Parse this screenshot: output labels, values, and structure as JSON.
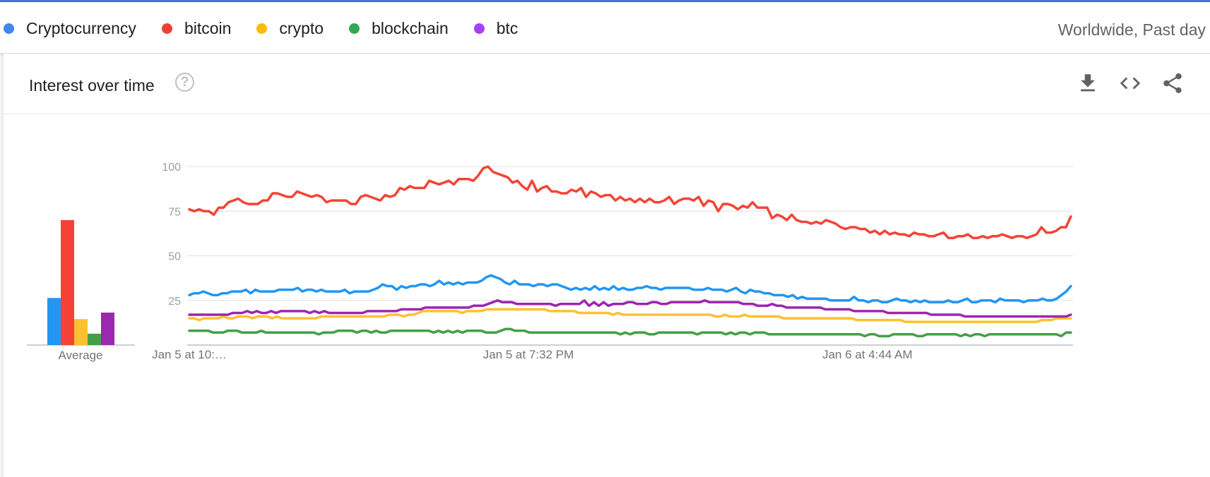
{
  "legend": {
    "items": [
      {
        "label": "Cryptocurrency",
        "color": "#4285f4"
      },
      {
        "label": "bitcoin",
        "color": "#ea4335"
      },
      {
        "label": "crypto",
        "color": "#fbbc04"
      },
      {
        "label": "blockchain",
        "color": "#34a853"
      },
      {
        "label": "btc",
        "color": "#a142f4"
      }
    ],
    "region": "Worldwide, Past day"
  },
  "card": {
    "title": "Interest over time",
    "help_icon": "help-circle-icon",
    "tools": [
      "download-icon",
      "embed-code-icon",
      "share-icon"
    ]
  },
  "chart_data": [
    {
      "type": "bar",
      "xlabel": "Average",
      "categories": [
        "Cryptocurrency",
        "bitcoin",
        "crypto",
        "blockchain",
        "btc"
      ],
      "values": [
        29,
        77,
        16,
        7,
        20
      ],
      "colors": [
        "#2196f3",
        "#f44336",
        "#fdc02f",
        "#43a047",
        "#9c27b0"
      ],
      "ylim": [
        0,
        100
      ]
    },
    {
      "type": "line",
      "ylim": [
        0,
        100
      ],
      "y_ticks": [
        25,
        50,
        75,
        100
      ],
      "x_tick_labels": [
        "Jan 5 at 10:…",
        "Jan 5 at 7:32 PM",
        "Jan 6 at 4:44 AM"
      ],
      "grid": true,
      "series": [
        {
          "name": "Cryptocurrency",
          "color": "#2196f3",
          "values": [
            28,
            29,
            29,
            30,
            29,
            28,
            28,
            29,
            29,
            30,
            30,
            30,
            31,
            29,
            31,
            30,
            30,
            30,
            30,
            31,
            31,
            31,
            31,
            32,
            30,
            31,
            31,
            30,
            31,
            30,
            30,
            30,
            30,
            31,
            29,
            30,
            30,
            30,
            30,
            31,
            32,
            34,
            33,
            33,
            31,
            33,
            32,
            33,
            33,
            34,
            34,
            33,
            34,
            36,
            34,
            35,
            34,
            35,
            34,
            35,
            35,
            35,
            36,
            38,
            39,
            38,
            37,
            35,
            34,
            36,
            34,
            34,
            34,
            33,
            34,
            34,
            33,
            34,
            34,
            33,
            32,
            31,
            32,
            31,
            32,
            31,
            33,
            31,
            32,
            31,
            33,
            31,
            32,
            31,
            31,
            32,
            32,
            33,
            32,
            32,
            31,
            32,
            32,
            32,
            32,
            32,
            32,
            31,
            31,
            31,
            32,
            31,
            31,
            31,
            30,
            31,
            32,
            30,
            29,
            31,
            30,
            30,
            29,
            29,
            28,
            28,
            28,
            27,
            28,
            26,
            27,
            26,
            26,
            26,
            26,
            26,
            25,
            25,
            25,
            25,
            25,
            27,
            25,
            25,
            24,
            25,
            25,
            24,
            24,
            25,
            26,
            25,
            25,
            24,
            25,
            24,
            25,
            24,
            24,
            24,
            24,
            25,
            24,
            24,
            25,
            26,
            24,
            24,
            25,
            25,
            25,
            24,
            26,
            25,
            25,
            25,
            25,
            24,
            25,
            25,
            25,
            26,
            25,
            25,
            26,
            28,
            30,
            33
          ]
        },
        {
          "name": "bitcoin",
          "color": "#f44336",
          "values": [
            76,
            75,
            76,
            75,
            75,
            73,
            77,
            77,
            80,
            81,
            82,
            80,
            79,
            79,
            79,
            81,
            81,
            85,
            85,
            84,
            83,
            83,
            86,
            85,
            84,
            83,
            84,
            83,
            80,
            81,
            81,
            81,
            81,
            79,
            79,
            83,
            84,
            83,
            82,
            81,
            84,
            83,
            84,
            88,
            87,
            89,
            88,
            88,
            88,
            92,
            91,
            90,
            91,
            92,
            90,
            93,
            93,
            93,
            92,
            95,
            99,
            100,
            97,
            96,
            95,
            94,
            91,
            92,
            89,
            87,
            92,
            86,
            88,
            89,
            86,
            86,
            85,
            85,
            87,
            86,
            88,
            83,
            86,
            85,
            83,
            84,
            84,
            81,
            83,
            81,
            82,
            80,
            82,
            80,
            82,
            80,
            80,
            81,
            83,
            79,
            81,
            82,
            82,
            81,
            83,
            78,
            81,
            80,
            75,
            79,
            79,
            78,
            76,
            78,
            77,
            80,
            77,
            77,
            77,
            71,
            73,
            72,
            70,
            73,
            70,
            69,
            69,
            68,
            69,
            68,
            70,
            69,
            68,
            66,
            65,
            66,
            66,
            65,
            65,
            63,
            64,
            62,
            64,
            62,
            63,
            62,
            62,
            61,
            63,
            62,
            62,
            61,
            61,
            62,
            63,
            60,
            60,
            61,
            61,
            62,
            60,
            60,
            61,
            60,
            61,
            61,
            62,
            61,
            60,
            61,
            61,
            60,
            61,
            62,
            66,
            63,
            63,
            64,
            66,
            66,
            72
          ]
        },
        {
          "name": "crypto",
          "color": "#fdc02f",
          "values": [
            15,
            15,
            14,
            15,
            15,
            15,
            15,
            16,
            15,
            15,
            16,
            16,
            16,
            15,
            16,
            16,
            16,
            15,
            16,
            15,
            15,
            15,
            15,
            15,
            15,
            15,
            15,
            16,
            16,
            16,
            16,
            16,
            16,
            16,
            16,
            16,
            16,
            16,
            16,
            16,
            16,
            17,
            17,
            17,
            16,
            17,
            17,
            18,
            19,
            19,
            19,
            19,
            19,
            19,
            19,
            19,
            18,
            19,
            19,
            19,
            19,
            20,
            20,
            20,
            20,
            20,
            20,
            20,
            20,
            20,
            20,
            20,
            20,
            20,
            19,
            19,
            19,
            19,
            19,
            19,
            18,
            18,
            18,
            18,
            18,
            18,
            18,
            17,
            18,
            17,
            17,
            17,
            17,
            17,
            17,
            17,
            17,
            17,
            17,
            17,
            17,
            17,
            17,
            17,
            17,
            17,
            17,
            17,
            16,
            16,
            17,
            16,
            16,
            16,
            17,
            16,
            16,
            16,
            16,
            16,
            16,
            16,
            15,
            15,
            15,
            15,
            15,
            15,
            15,
            15,
            15,
            15,
            15,
            15,
            15,
            15,
            15,
            14,
            14,
            14,
            14,
            14,
            14,
            14,
            14,
            14,
            14,
            13,
            13,
            13,
            13,
            13,
            13,
            13,
            13,
            13,
            13,
            13,
            13,
            13,
            13,
            13,
            13,
            13,
            13,
            13,
            13,
            13,
            13,
            13,
            13,
            13,
            13,
            13,
            13,
            14,
            14,
            14,
            15,
            15,
            15,
            15
          ]
        },
        {
          "name": "blockchain",
          "color": "#43a047",
          "values": [
            8,
            8,
            8,
            8,
            8,
            7,
            7,
            7,
            8,
            8,
            8,
            7,
            7,
            7,
            7,
            8,
            7,
            7,
            7,
            7,
            7,
            7,
            7,
            7,
            7,
            7,
            7,
            6,
            7,
            7,
            7,
            8,
            8,
            8,
            8,
            7,
            8,
            8,
            7,
            8,
            7,
            7,
            8,
            8,
            8,
            8,
            8,
            8,
            8,
            8,
            8,
            7,
            8,
            7,
            8,
            7,
            8,
            7,
            8,
            8,
            8,
            8,
            7,
            7,
            7,
            8,
            9,
            9,
            8,
            8,
            8,
            7,
            7,
            7,
            7,
            7,
            7,
            7,
            7,
            7,
            7,
            7,
            7,
            7,
            7,
            7,
            7,
            7,
            7,
            7,
            6,
            7,
            6,
            7,
            7,
            7,
            6,
            6,
            7,
            7,
            7,
            7,
            7,
            7,
            7,
            7,
            6,
            7,
            7,
            7,
            7,
            7,
            6,
            7,
            6,
            7,
            7,
            6,
            7,
            7,
            7,
            6,
            6,
            6,
            6,
            6,
            6,
            6,
            6,
            6,
            6,
            6,
            6,
            6,
            6,
            6,
            6,
            6,
            6,
            6,
            6,
            5,
            6,
            6,
            5,
            5,
            5,
            6,
            6,
            6,
            6,
            6,
            5,
            5,
            6,
            6,
            6,
            6,
            6,
            6,
            6,
            5,
            6,
            5,
            6,
            6,
            5,
            6,
            6,
            6,
            6,
            6,
            6,
            6,
            6,
            6,
            6,
            6,
            6,
            6,
            6,
            6,
            5,
            7,
            7
          ]
        },
        {
          "name": "btc",
          "color": "#9c27b0",
          "values": [
            17,
            17,
            17,
            17,
            17,
            17,
            17,
            17,
            17,
            18,
            18,
            18,
            19,
            18,
            19,
            18,
            18,
            19,
            18,
            19,
            19,
            19,
            19,
            19,
            19,
            18,
            19,
            18,
            19,
            18,
            18,
            18,
            18,
            18,
            18,
            18,
            18,
            19,
            19,
            19,
            19,
            19,
            19,
            19,
            20,
            20,
            20,
            20,
            20,
            21,
            21,
            21,
            21,
            21,
            21,
            21,
            21,
            21,
            21,
            22,
            22,
            22,
            23,
            24,
            25,
            24,
            24,
            24,
            23,
            23,
            23,
            23,
            23,
            23,
            23,
            23,
            22,
            23,
            23,
            23,
            23,
            23,
            25,
            22,
            24,
            22,
            24,
            22,
            23,
            23,
            23,
            24,
            24,
            23,
            23,
            23,
            24,
            24,
            23,
            23,
            24,
            24,
            24,
            24,
            24,
            24,
            24,
            25,
            24,
            24,
            24,
            24,
            24,
            24,
            24,
            23,
            23,
            23,
            22,
            22,
            22,
            23,
            22,
            22,
            21,
            21,
            21,
            21,
            21,
            21,
            21,
            21,
            20,
            20,
            20,
            20,
            20,
            20,
            19,
            19,
            19,
            19,
            19,
            19,
            19,
            18,
            18,
            18,
            18,
            18,
            18,
            18,
            18,
            18,
            17,
            17,
            17,
            17,
            17,
            17,
            17,
            16,
            16,
            16,
            16,
            16,
            16,
            16,
            16,
            16,
            16,
            16,
            16,
            16,
            16,
            16,
            16,
            16,
            16,
            16,
            16,
            16,
            16,
            17
          ]
        }
      ]
    }
  ]
}
